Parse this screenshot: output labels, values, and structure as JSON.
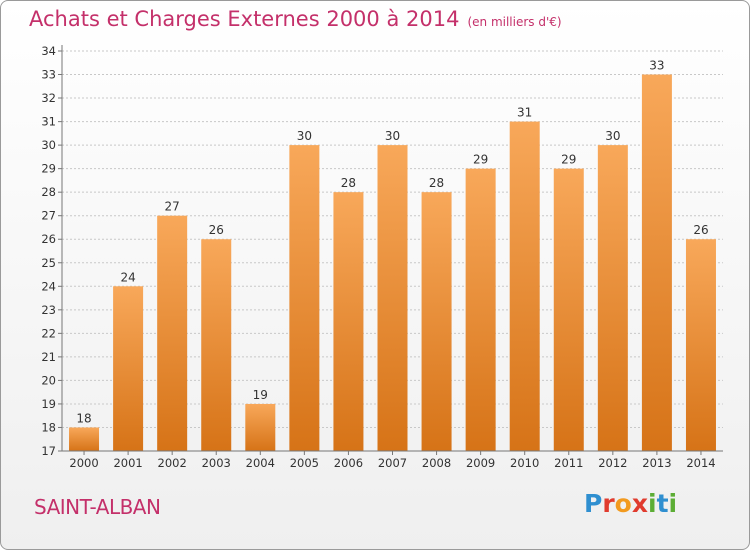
{
  "title": "Achats et Charges Externes 2000 à 2014",
  "subtitle": "(en milliers d'€)",
  "commune": "SAINT-ALBAN",
  "logo": "Proxiti",
  "colors": {
    "title": "#c4306a",
    "bar_top": "#f8a85a",
    "bar_bottom": "#d67317",
    "axis": "#777777",
    "grid": "#c8c8c8"
  },
  "chart_data": {
    "type": "bar",
    "title": "Achats et Charges Externes 2000 à 2014",
    "subtitle": "(en milliers d'€)",
    "categories": [
      "2000",
      "2001",
      "2002",
      "2003",
      "2004",
      "2005",
      "2006",
      "2007",
      "2008",
      "2009",
      "2010",
      "2011",
      "2012",
      "2013",
      "2014"
    ],
    "values": [
      18,
      24,
      27,
      26,
      19,
      30,
      28,
      30,
      28,
      29,
      31,
      29,
      30,
      33,
      26
    ],
    "ylim": [
      17,
      34
    ],
    "yticks": [
      17,
      18,
      19,
      20,
      21,
      22,
      23,
      24,
      25,
      26,
      27,
      28,
      29,
      30,
      31,
      32,
      33,
      34
    ],
    "grid": "horizontal dashed",
    "data_labels": true
  }
}
